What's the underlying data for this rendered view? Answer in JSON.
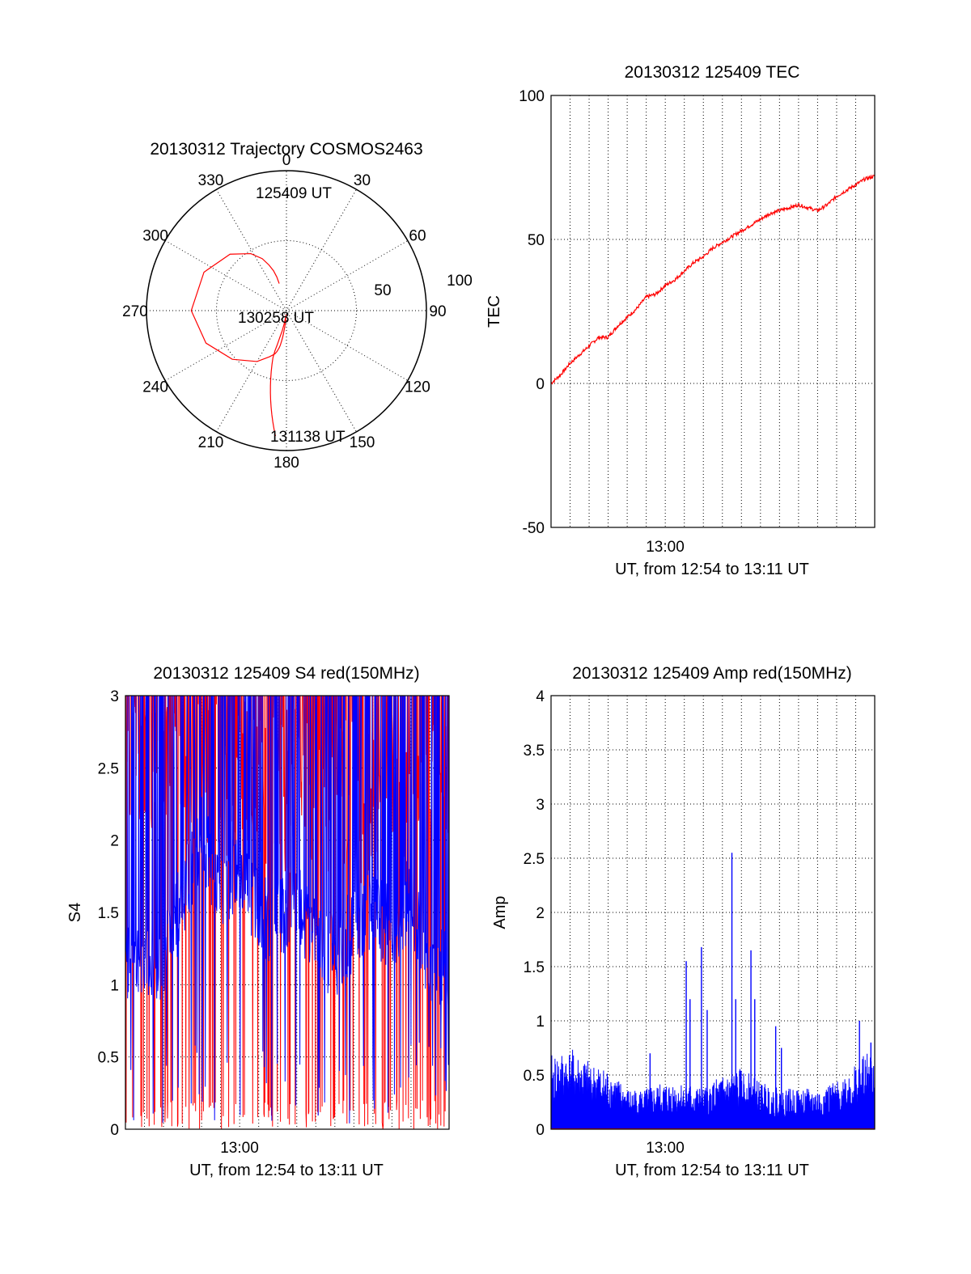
{
  "chart_data": [
    {
      "id": "polar",
      "type": "polar",
      "title": "20130312 Trajectory COSMOS2463",
      "azimuth_labels": [
        "0",
        "30",
        "60",
        "90",
        "120",
        "150",
        "180",
        "210",
        "240",
        "270",
        "300",
        "330"
      ],
      "radial_labels": [
        "50",
        "100"
      ],
      "rmax": 100,
      "track": [
        [
          345,
          20
        ],
        [
          344,
          25
        ],
        [
          342,
          30
        ],
        [
          339,
          35
        ],
        [
          335,
          41
        ],
        [
          328,
          48
        ],
        [
          315,
          57
        ],
        [
          295,
          65
        ],
        [
          270,
          68
        ],
        [
          248,
          62
        ],
        [
          228,
          52
        ],
        [
          210,
          42
        ],
        [
          200,
          35
        ],
        [
          195,
          32
        ],
        [
          193,
          30
        ],
        [
          191,
          27
        ],
        [
          190,
          25
        ],
        [
          189,
          22
        ],
        [
          188,
          19
        ],
        [
          187,
          15
        ],
        [
          186,
          12
        ],
        [
          185.5,
          10
        ],
        [
          185,
          8
        ],
        [
          185,
          6
        ],
        [
          185,
          5
        ],
        [
          185,
          4
        ],
        [
          185,
          3
        ],
        [
          186,
          4
        ],
        [
          188,
          6
        ],
        [
          190,
          10
        ],
        [
          192,
          15
        ],
        [
          194,
          20
        ],
        [
          195,
          25
        ],
        [
          196,
          30
        ],
        [
          196,
          35
        ],
        [
          195,
          40
        ],
        [
          194,
          45
        ],
        [
          193,
          50
        ],
        [
          192,
          55
        ],
        [
          191,
          60
        ],
        [
          190,
          65
        ],
        [
          189,
          70
        ],
        [
          188,
          75
        ],
        [
          187,
          80
        ],
        [
          186,
          85
        ],
        [
          185,
          90
        ]
      ],
      "annotations": [
        "125409 UT",
        "130258 UT",
        "131138 UT"
      ],
      "track_color": "#ff0000"
    },
    {
      "id": "tec",
      "type": "line",
      "title": "20130312 125409 TEC",
      "ylabel": "TEC",
      "xlabel": "UT, from 12:54 to 13:11 UT",
      "xlim": [
        0,
        17
      ],
      "ylim": [
        -50,
        100
      ],
      "yticks": [
        "-50",
        "0",
        "50",
        "100"
      ],
      "xtick_label": "13:00",
      "xtick_pos": 6,
      "keypoints": [
        [
          0,
          0
        ],
        [
          0.5,
          3
        ],
        [
          1,
          7
        ],
        [
          1.5,
          10
        ],
        [
          2,
          13
        ],
        [
          2.5,
          16
        ],
        [
          3,
          16
        ],
        [
          3.5,
          20
        ],
        [
          4,
          23
        ],
        [
          4.5,
          26
        ],
        [
          5,
          30
        ],
        [
          5.5,
          31
        ],
        [
          6,
          34
        ],
        [
          6.5,
          36
        ],
        [
          7,
          39
        ],
        [
          7.5,
          42
        ],
        [
          8,
          44
        ],
        [
          8.5,
          47
        ],
        [
          9,
          49
        ],
        [
          9.5,
          51
        ],
        [
          10,
          53
        ],
        [
          10.5,
          55
        ],
        [
          11,
          57
        ],
        [
          11.5,
          59
        ],
        [
          12,
          60
        ],
        [
          12.5,
          61
        ],
        [
          13,
          62
        ],
        [
          13.5,
          61
        ],
        [
          14,
          60
        ],
        [
          14.5,
          62
        ],
        [
          15,
          65
        ],
        [
          15.5,
          67
        ],
        [
          16,
          69
        ],
        [
          16.5,
          71
        ],
        [
          17,
          72
        ]
      ],
      "line_color": "#ff0000"
    },
    {
      "id": "s4",
      "type": "line",
      "title": "20130312 125409 S4 red(150MHz)",
      "ylabel": "S4",
      "xlabel": "UT, from 12:54 to 13:11 UT",
      "xlim": [
        0,
        17
      ],
      "ylim": [
        0,
        3
      ],
      "yticks": [
        "0",
        "0.5",
        "1",
        "1.5",
        "2",
        "2.5",
        "3"
      ],
      "xtick_label": "13:00",
      "xtick_pos": 6,
      "series": [
        {
          "name": "red",
          "color": "#ff0000",
          "envelope": [
            [
              0,
              2.5
            ],
            [
              2,
              2.4
            ],
            [
              4,
              2.3
            ],
            [
              6,
              2.2
            ],
            [
              8,
              2.1
            ],
            [
              10,
              2.2
            ],
            [
              12,
              2.0
            ],
            [
              14,
              2.1
            ],
            [
              16,
              2.2
            ],
            [
              17,
              2.3
            ]
          ]
        },
        {
          "name": "blue",
          "color": "#0000ff",
          "envelope": [
            [
              0,
              1.2
            ],
            [
              1,
              1.1
            ],
            [
              2,
              1.2
            ],
            [
              3,
              1.6
            ],
            [
              4,
              2.0
            ],
            [
              5,
              1.7
            ],
            [
              6,
              1.8
            ],
            [
              7,
              1.5
            ],
            [
              8,
              1.4
            ],
            [
              9,
              1.6
            ],
            [
              10,
              1.3
            ],
            [
              11,
              1.2
            ],
            [
              12,
              1.4
            ],
            [
              13,
              1.5
            ],
            [
              14,
              1.4
            ],
            [
              15,
              1.6
            ],
            [
              16,
              1.1
            ],
            [
              17,
              1.1
            ]
          ]
        }
      ]
    },
    {
      "id": "amp",
      "type": "line",
      "title": "20130312 125409 Amp red(150MHz)",
      "ylabel": "Amp",
      "xlabel": "UT, from 12:54 to 13:11 UT",
      "xlim": [
        0,
        17
      ],
      "ylim": [
        0,
        4
      ],
      "yticks": [
        "0",
        "0.5",
        "1",
        "1.5",
        "2",
        "2.5",
        "3",
        "3.5",
        "4"
      ],
      "xtick_label": "13:00",
      "xtick_pos": 6,
      "series": [
        {
          "name": "blue",
          "color": "#0000ff",
          "envelope": [
            [
              0,
              0.55
            ],
            [
              1,
              0.6
            ],
            [
              2,
              0.5
            ],
            [
              3,
              0.45
            ],
            [
              4,
              0.3
            ],
            [
              5,
              0.3
            ],
            [
              6,
              0.35
            ],
            [
              7,
              0.35
            ],
            [
              8,
              0.3
            ],
            [
              9,
              0.4
            ],
            [
              10,
              0.45
            ],
            [
              11,
              0.35
            ],
            [
              12,
              0.3
            ],
            [
              13,
              0.3
            ],
            [
              14,
              0.3
            ],
            [
              15,
              0.35
            ],
            [
              16,
              0.5
            ],
            [
              17,
              0.6
            ]
          ]
        },
        {
          "name": "red",
          "color": "#ff0000",
          "envelope": [
            [
              0,
              0
            ],
            [
              17,
              0
            ]
          ]
        }
      ],
      "spikes": [
        [
          5.2,
          0.7
        ],
        [
          7.1,
          1.55
        ],
        [
          7.3,
          1.2
        ],
        [
          7.9,
          1.68
        ],
        [
          8.2,
          1.1
        ],
        [
          9.5,
          2.55
        ],
        [
          9.7,
          1.2
        ],
        [
          10.5,
          1.65
        ],
        [
          10.7,
          1.2
        ],
        [
          11.8,
          0.95
        ],
        [
          12.1,
          0.75
        ],
        [
          16.2,
          1.0
        ],
        [
          16.8,
          0.8
        ]
      ]
    }
  ]
}
